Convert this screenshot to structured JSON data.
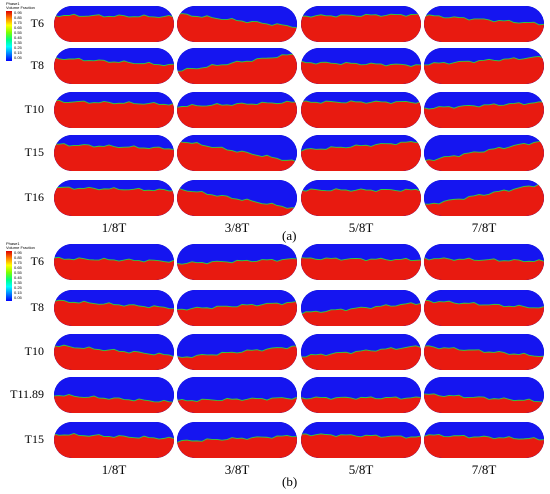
{
  "colors": {
    "water": "#e81a10",
    "air": "#1515f0",
    "interface": "#2ecc40",
    "legend_stops": [
      "#e00000",
      "#ff7f00",
      "#ffff00",
      "#7fff00",
      "#00ff7f",
      "#00ffff",
      "#007fff",
      "#0000ff"
    ]
  },
  "panels": [
    {
      "id": "a",
      "label": "(a)",
      "legend": {
        "title": "Phase1\nVolume Fraction",
        "ticks": [
          "0.95",
          "0.85",
          "0.75",
          "0.65",
          "0.55",
          "0.45",
          "0.35",
          "0.25",
          "0.15",
          "0.05"
        ]
      },
      "rows": [
        "T6",
        "T8",
        "T10",
        "T15",
        "T16"
      ],
      "columns": [
        "1/8T",
        "3/8T",
        "5/8T",
        "7/8T"
      ],
      "levels": [
        [
          0.72,
          0.6,
          0.74,
          0.62
        ],
        [
          0.62,
          0.6,
          0.56,
          0.65
        ],
        [
          0.7,
          0.66,
          0.72,
          0.63
        ],
        [
          0.68,
          0.55,
          0.7,
          0.56
        ],
        [
          0.75,
          0.48,
          0.72,
          0.6
        ]
      ],
      "tilt": [
        [
          0.02,
          0.18,
          -0.02,
          0.12
        ],
        [
          0.1,
          -0.24,
          0.04,
          -0.1
        ],
        [
          0.04,
          -0.06,
          0.0,
          -0.08
        ],
        [
          0.06,
          0.3,
          -0.12,
          -0.28
        ],
        [
          0.04,
          0.28,
          0.0,
          -0.3
        ]
      ]
    },
    {
      "id": "b",
      "label": "(b)",
      "legend": {
        "title": "Phase1\nVolume Fraction",
        "ticks": [
          "0.95",
          "0.85",
          "0.75",
          "0.65",
          "0.55",
          "0.45",
          "0.35",
          "0.25",
          "0.15",
          "0.05"
        ]
      },
      "rows": [
        "T6",
        "T8",
        "T10",
        "T11.89",
        "T15"
      ],
      "columns": [
        "1/8T",
        "3/8T",
        "5/8T",
        "7/8T"
      ],
      "levels": [
        [
          0.56,
          0.52,
          0.58,
          0.56
        ],
        [
          0.6,
          0.56,
          0.5,
          0.6
        ],
        [
          0.54,
          0.5,
          0.52,
          0.52
        ],
        [
          0.4,
          0.38,
          0.42,
          0.42
        ],
        [
          0.6,
          0.54,
          0.62,
          0.58
        ]
      ],
      "tilt": [
        [
          0.04,
          -0.06,
          0.02,
          0.04
        ],
        [
          0.1,
          -0.1,
          -0.14,
          0.1
        ],
        [
          0.14,
          -0.16,
          -0.14,
          0.14
        ],
        [
          0.1,
          -0.04,
          0.0,
          0.1
        ],
        [
          0.06,
          -0.08,
          0.04,
          0.06
        ]
      ]
    }
  ]
}
